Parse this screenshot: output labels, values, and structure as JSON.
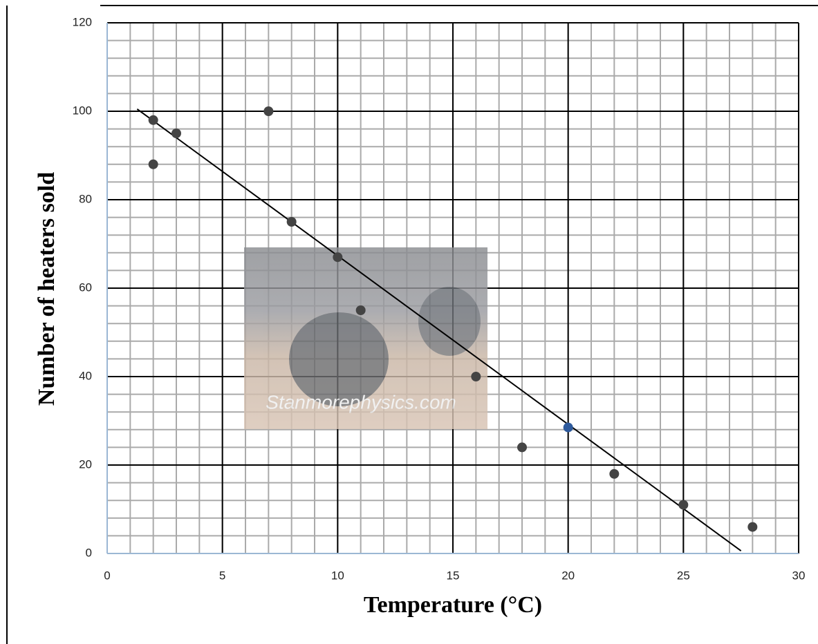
{
  "chart_data": {
    "type": "scatter",
    "x_label": "Temperature (°C)",
    "y_label": "Number of heaters sold",
    "x": [
      2,
      2,
      3,
      7,
      8,
      10,
      11,
      16,
      18,
      20,
      22,
      25,
      28
    ],
    "values": [
      98,
      88,
      95,
      100,
      75,
      67,
      55,
      40,
      24,
      28.5,
      18,
      11,
      6
    ],
    "colors": [
      "#444",
      "#444",
      "#444",
      "#444",
      "#444",
      "#444",
      "#444",
      "#444",
      "#444",
      "#2e5a9c",
      "#444",
      "#444",
      "#444"
    ],
    "trendline": {
      "x": [
        1.3,
        27.5
      ],
      "y": [
        100.5,
        0.6
      ],
      "color": "#000"
    },
    "xlim": [
      0,
      30
    ],
    "xticks": [
      0,
      5,
      10,
      15,
      20,
      25,
      30
    ],
    "ylim": [
      0,
      120
    ],
    "yticks": [
      0,
      20,
      40,
      60,
      80,
      100,
      120
    ],
    "grid": true,
    "minor_grid": {
      "x": 1,
      "y": 4
    },
    "watermark": "Stanmorephysics.com"
  }
}
